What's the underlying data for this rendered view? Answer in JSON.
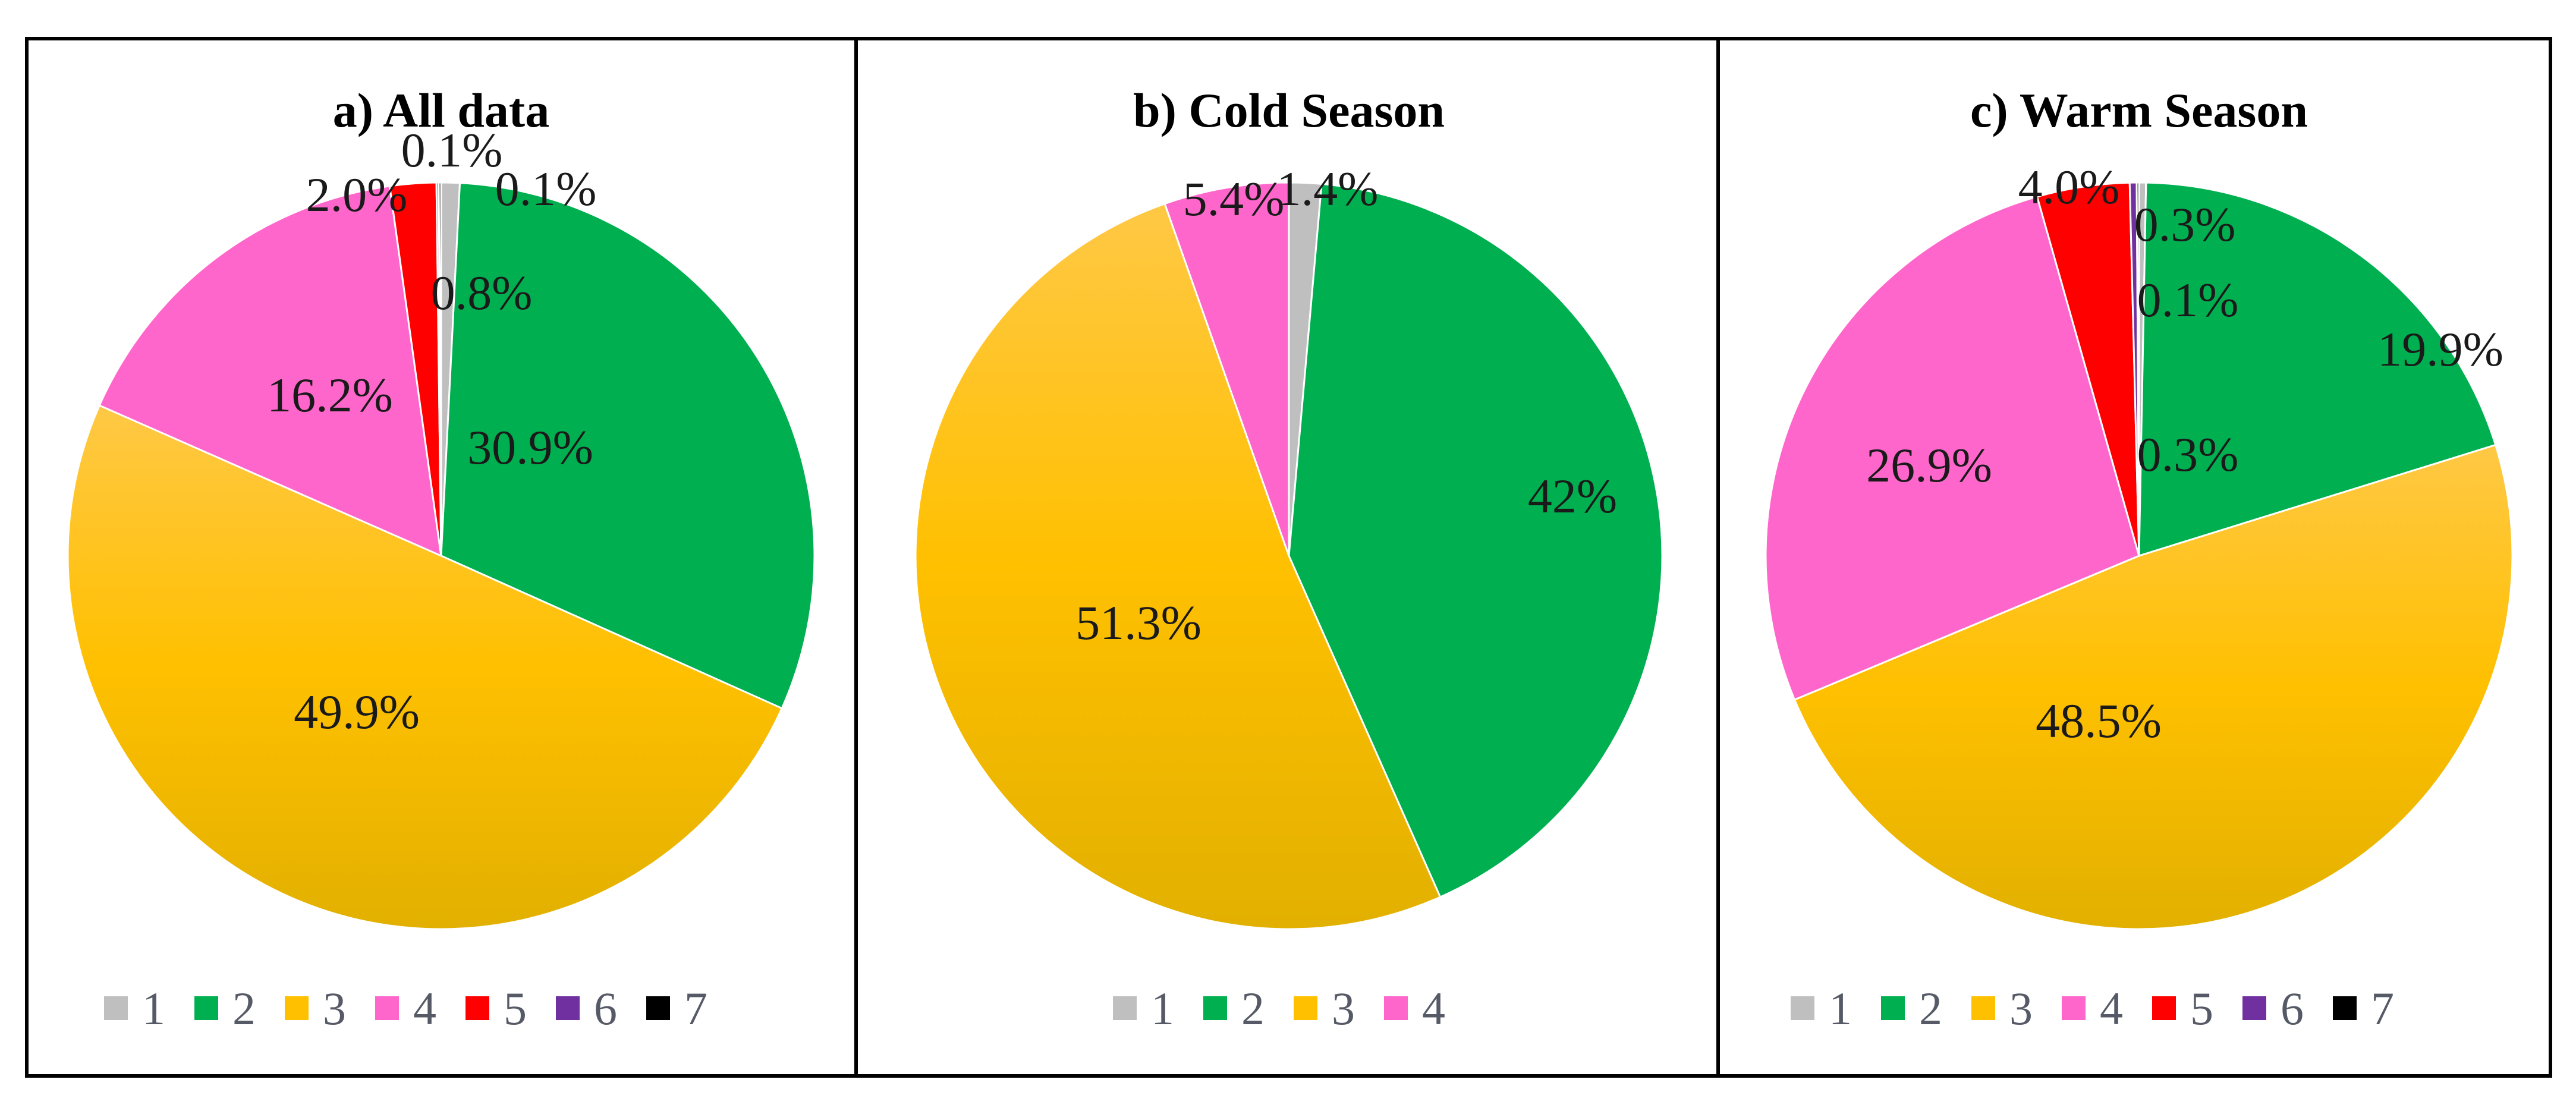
{
  "chart_data": [
    {
      "type": "pie",
      "title": "a) All data",
      "categories": [
        "1",
        "2",
        "3",
        "4",
        "5",
        "6",
        "7"
      ],
      "values": [
        0.8,
        30.9,
        49.9,
        16.2,
        2.0,
        0.1,
        0.1
      ],
      "labels": [
        "0.8%",
        "30.9%",
        "49.9%",
        "16.2%",
        "2.0%",
        "0.1%",
        "0.1%"
      ],
      "legend": [
        "1",
        "2",
        "3",
        "4",
        "5",
        "6",
        "7"
      ],
      "legend_position": "bottom"
    },
    {
      "type": "pie",
      "title": "b) Cold Season",
      "categories": [
        "1",
        "2",
        "3",
        "4"
      ],
      "values": [
        1.4,
        42,
        51.3,
        5.4
      ],
      "labels": [
        "1.4%",
        "42%",
        "51.3%",
        "5.4%"
      ],
      "legend": [
        "1",
        "2",
        "3",
        "4"
      ],
      "legend_position": "bottom"
    },
    {
      "type": "pie",
      "title": "c) Warm Season",
      "categories": [
        "1",
        "2",
        "3",
        "4",
        "5",
        "6",
        "7"
      ],
      "values": [
        0.3,
        19.9,
        48.5,
        26.9,
        4.0,
        0.3,
        0.1
      ],
      "labels": [
        "0.3%",
        "19.9%",
        "48.5%",
        "26.9%",
        "4.0%",
        "0.3%",
        "0.1%"
      ],
      "legend": [
        "1",
        "2",
        "3",
        "4",
        "5",
        "6",
        "7"
      ],
      "legend_position": "bottom"
    }
  ],
  "category_colors": {
    "1": "#bfbfbf",
    "2": "#00b050",
    "3": "#ffc000",
    "4": "#ff66cc",
    "5": "#ff0000",
    "6": "#7030a0",
    "7": "#000000"
  }
}
